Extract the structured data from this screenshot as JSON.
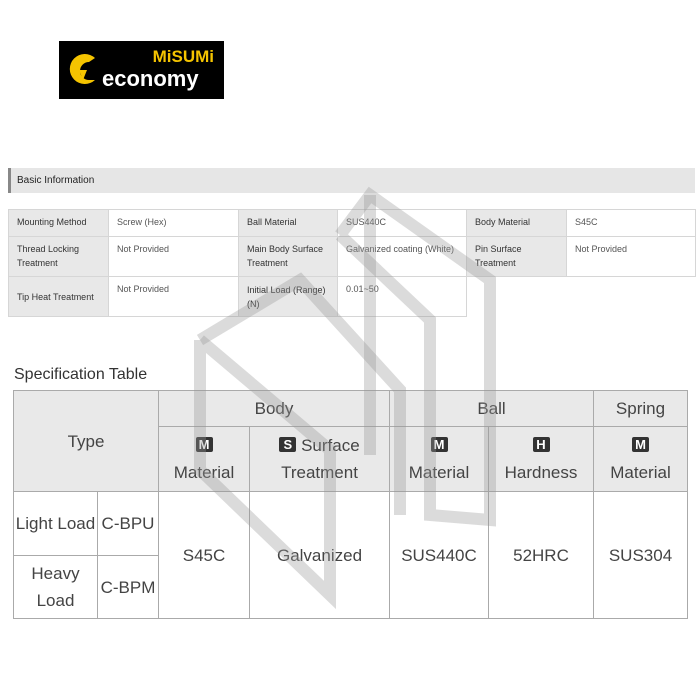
{
  "logo": {
    "brand": "MiSUMi",
    "name": "economy",
    "brand_color": "#f5c400"
  },
  "basic_info": {
    "title": "Basic Information",
    "rows": [
      [
        {
          "k": "Mounting Method",
          "v": "Screw (Hex)"
        },
        {
          "k": "Ball Material",
          "v": "SUS440C"
        },
        {
          "k": "Body Material",
          "v": "S45C"
        }
      ],
      [
        {
          "k": "Thread Locking Treatment",
          "v": "Not Provided"
        },
        {
          "k": "Main Body Surface Treatment",
          "v": "Galvanized coating (White)"
        },
        {
          "k": "Pin Surface Treatment",
          "v": "Not Provided"
        }
      ],
      [
        {
          "k": "Tip Heat Treatment",
          "v": "Not Provided"
        },
        {
          "k": "Initial Load (Range)(N)",
          "v": "0.01~50"
        }
      ]
    ]
  },
  "spec": {
    "title": "Specification Table",
    "type": "Type",
    "body": "Body",
    "ball": "Ball",
    "spring": "Spring",
    "icons": {
      "m": "M",
      "s": "S",
      "h": "H"
    },
    "cols": {
      "material": "Material",
      "surface": "Surface",
      "treatment": "Treatment",
      "hardness": "Hardness"
    },
    "rows": [
      {
        "load": "Light Load",
        "code": "C-BPU"
      },
      {
        "load": "Heavy Load",
        "code": "C-BPM"
      }
    ],
    "values": {
      "body_material": "S45C",
      "surface": "Galvanized",
      "ball_material": "SUS440C",
      "hardness": "52HRC",
      "spring_material": "SUS304"
    }
  }
}
